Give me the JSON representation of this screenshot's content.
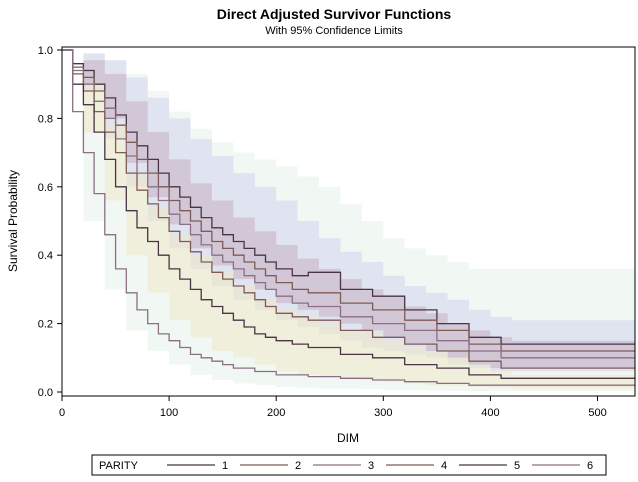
{
  "chart_data": {
    "type": "line",
    "step": true,
    "title": "Direct Adjusted Survivor Functions",
    "subtitle": "With 95% Confidence Limits",
    "xlabel": "DIM",
    "ylabel": "Survival Probability",
    "xlim": [
      0,
      535
    ],
    "ylim": [
      0,
      1.0
    ],
    "xticks": [
      0,
      100,
      200,
      300,
      400,
      500
    ],
    "yticks": [
      0.0,
      0.2,
      0.4,
      0.6,
      0.8,
      1.0
    ],
    "xtick_labels": [
      "0",
      "100",
      "200",
      "300",
      "400",
      "500"
    ],
    "ytick_labels": [
      "0.0",
      "0.2",
      "0.4",
      "0.6",
      "0.8",
      "1.0"
    ],
    "grid": false,
    "legend": {
      "title": "PARITY",
      "placement": "bottom"
    },
    "colors": {
      "band_green": "#e5f2ea",
      "band_blue": "#d2d4ec",
      "band_purple": "#c6aec2",
      "band_yellow": "#efe7c6",
      "line_dark": "#4a3446",
      "line_brown": "#7e5c55",
      "line_mauve": "#8c6f84"
    },
    "series": [
      {
        "name": "1",
        "color": "#4a3446",
        "x": [
          0,
          10,
          20,
          30,
          40,
          50,
          60,
          70,
          80,
          90,
          100,
          110,
          120,
          130,
          140,
          150,
          160,
          170,
          180,
          190,
          200,
          215,
          230,
          260,
          290,
          320,
          350,
          380,
          410,
          535
        ],
        "y": [
          1.0,
          0.96,
          0.94,
          0.9,
          0.86,
          0.81,
          0.76,
          0.72,
          0.68,
          0.64,
          0.6,
          0.57,
          0.54,
          0.51,
          0.48,
          0.46,
          0.44,
          0.42,
          0.4,
          0.38,
          0.36,
          0.34,
          0.35,
          0.3,
          0.28,
          0.24,
          0.2,
          0.16,
          0.14,
          0.14
        ]
      },
      {
        "name": "2",
        "color": "#7e5c55",
        "x": [
          0,
          10,
          20,
          30,
          40,
          50,
          60,
          70,
          80,
          90,
          100,
          110,
          120,
          130,
          140,
          150,
          160,
          170,
          180,
          190,
          200,
          215,
          230,
          260,
          290,
          320,
          350,
          380,
          410,
          535
        ],
        "y": [
          1.0,
          0.95,
          0.92,
          0.88,
          0.83,
          0.78,
          0.73,
          0.68,
          0.64,
          0.6,
          0.56,
          0.53,
          0.5,
          0.47,
          0.44,
          0.42,
          0.4,
          0.38,
          0.36,
          0.34,
          0.32,
          0.3,
          0.29,
          0.26,
          0.24,
          0.21,
          0.18,
          0.14,
          0.12,
          0.12
        ]
      },
      {
        "name": "3",
        "color": "#8c6f84",
        "x": [
          0,
          10,
          20,
          30,
          40,
          50,
          60,
          70,
          80,
          90,
          100,
          110,
          120,
          130,
          140,
          150,
          160,
          170,
          180,
          190,
          200,
          215,
          230,
          260,
          290,
          320,
          350,
          380,
          410,
          535
        ],
        "y": [
          1.0,
          0.94,
          0.9,
          0.85,
          0.8,
          0.74,
          0.69,
          0.64,
          0.6,
          0.56,
          0.52,
          0.49,
          0.46,
          0.43,
          0.4,
          0.38,
          0.36,
          0.34,
          0.32,
          0.3,
          0.28,
          0.26,
          0.25,
          0.22,
          0.2,
          0.18,
          0.15,
          0.12,
          0.1,
          0.1
        ]
      },
      {
        "name": "4",
        "color": "#7e5c55",
        "x": [
          0,
          10,
          20,
          30,
          40,
          50,
          60,
          70,
          80,
          90,
          100,
          110,
          120,
          130,
          140,
          150,
          160,
          170,
          180,
          190,
          200,
          215,
          230,
          260,
          290,
          320,
          350,
          380,
          410,
          535
        ],
        "y": [
          1.0,
          0.93,
          0.88,
          0.82,
          0.76,
          0.7,
          0.64,
          0.59,
          0.55,
          0.51,
          0.47,
          0.44,
          0.41,
          0.38,
          0.35,
          0.33,
          0.31,
          0.29,
          0.27,
          0.25,
          0.23,
          0.22,
          0.21,
          0.18,
          0.16,
          0.14,
          0.12,
          0.09,
          0.07,
          0.07
        ]
      },
      {
        "name": "5",
        "color": "#4a3446",
        "x": [
          0,
          10,
          20,
          30,
          40,
          50,
          60,
          70,
          80,
          90,
          100,
          110,
          120,
          130,
          140,
          150,
          160,
          170,
          180,
          190,
          200,
          215,
          230,
          260,
          290,
          320,
          350,
          380,
          410,
          535
        ],
        "y": [
          1.0,
          0.9,
          0.84,
          0.76,
          0.68,
          0.6,
          0.53,
          0.48,
          0.44,
          0.4,
          0.36,
          0.33,
          0.3,
          0.27,
          0.25,
          0.23,
          0.21,
          0.19,
          0.17,
          0.16,
          0.15,
          0.14,
          0.13,
          0.11,
          0.1,
          0.08,
          0.07,
          0.05,
          0.04,
          0.04
        ]
      },
      {
        "name": "6",
        "color": "#8c6f84",
        "x": [
          0,
          10,
          20,
          30,
          40,
          50,
          60,
          70,
          80,
          90,
          100,
          110,
          120,
          130,
          140,
          150,
          160,
          170,
          180,
          190,
          200,
          215,
          230,
          260,
          290,
          320,
          350,
          380,
          410,
          535
        ],
        "y": [
          1.0,
          0.82,
          0.7,
          0.58,
          0.46,
          0.36,
          0.29,
          0.24,
          0.2,
          0.17,
          0.15,
          0.13,
          0.11,
          0.1,
          0.09,
          0.08,
          0.07,
          0.07,
          0.06,
          0.06,
          0.05,
          0.05,
          0.045,
          0.04,
          0.035,
          0.03,
          0.025,
          0.02,
          0.02,
          0.02
        ]
      }
    ],
    "bands": [
      {
        "fill": "#e5f2ea",
        "x": [
          0,
          20,
          40,
          60,
          80,
          100,
          120,
          140,
          160,
          180,
          200,
          220,
          240,
          260,
          280,
          300,
          320,
          340,
          360,
          380,
          400,
          420,
          535
        ],
        "upper": [
          1.0,
          0.99,
          0.97,
          0.93,
          0.88,
          0.82,
          0.77,
          0.73,
          0.7,
          0.68,
          0.66,
          0.63,
          0.6,
          0.55,
          0.5,
          0.45,
          0.42,
          0.4,
          0.38,
          0.36,
          0.36,
          0.36,
          0.36
        ],
        "lower": [
          1.0,
          0.5,
          0.3,
          0.18,
          0.12,
          0.08,
          0.05,
          0.035,
          0.025,
          0.02,
          0.015,
          0.012,
          0.01,
          0.01,
          0.008,
          0.006,
          0.005,
          0.004,
          0.003,
          0.002,
          0.002,
          0.002,
          0.002
        ]
      },
      {
        "fill": "#d2d4ec",
        "x": [
          0,
          20,
          40,
          60,
          80,
          100,
          120,
          140,
          160,
          180,
          200,
          220,
          240,
          260,
          280,
          300,
          320,
          340,
          360,
          380,
          400,
          420,
          535
        ],
        "upper": [
          1.0,
          0.99,
          0.97,
          0.92,
          0.86,
          0.8,
          0.74,
          0.69,
          0.64,
          0.6,
          0.56,
          0.5,
          0.45,
          0.41,
          0.38,
          0.34,
          0.31,
          0.29,
          0.27,
          0.24,
          0.22,
          0.21,
          0.21
        ],
        "lower": [
          1.0,
          0.88,
          0.74,
          0.6,
          0.5,
          0.42,
          0.36,
          0.31,
          0.27,
          0.24,
          0.21,
          0.19,
          0.17,
          0.15,
          0.13,
          0.12,
          0.11,
          0.1,
          0.08,
          0.07,
          0.06,
          0.06,
          0.06
        ]
      },
      {
        "fill": "#c6aec2",
        "x": [
          0,
          20,
          40,
          60,
          80,
          100,
          120,
          140,
          160,
          180,
          200,
          220,
          240,
          260,
          280,
          300,
          320,
          340,
          360,
          380,
          400,
          420,
          535
        ],
        "upper": [
          1.0,
          0.97,
          0.93,
          0.85,
          0.76,
          0.68,
          0.61,
          0.56,
          0.51,
          0.47,
          0.43,
          0.39,
          0.36,
          0.33,
          0.3,
          0.28,
          0.25,
          0.23,
          0.2,
          0.18,
          0.16,
          0.15,
          0.15
        ],
        "lower": [
          1.0,
          0.9,
          0.8,
          0.67,
          0.57,
          0.49,
          0.42,
          0.37,
          0.33,
          0.3,
          0.26,
          0.24,
          0.22,
          0.2,
          0.18,
          0.16,
          0.14,
          0.12,
          0.1,
          0.08,
          0.07,
          0.07,
          0.07
        ]
      },
      {
        "fill": "#efe7c6",
        "x": [
          0,
          20,
          40,
          60,
          80,
          100,
          120,
          140,
          160,
          180,
          200,
          220,
          240,
          260,
          280,
          300,
          320,
          340,
          360,
          380,
          400,
          420,
          535
        ],
        "upper": [
          1.0,
          0.9,
          0.78,
          0.64,
          0.54,
          0.46,
          0.4,
          0.35,
          0.31,
          0.27,
          0.24,
          0.22,
          0.2,
          0.18,
          0.17,
          0.15,
          0.13,
          0.12,
          0.1,
          0.08,
          0.06,
          0.05,
          0.05
        ],
        "lower": [
          1.0,
          0.76,
          0.56,
          0.4,
          0.29,
          0.21,
          0.16,
          0.12,
          0.1,
          0.08,
          0.06,
          0.05,
          0.045,
          0.04,
          0.035,
          0.03,
          0.025,
          0.02,
          0.018,
          0.015,
          0.012,
          0.01,
          0.01
        ]
      }
    ]
  }
}
